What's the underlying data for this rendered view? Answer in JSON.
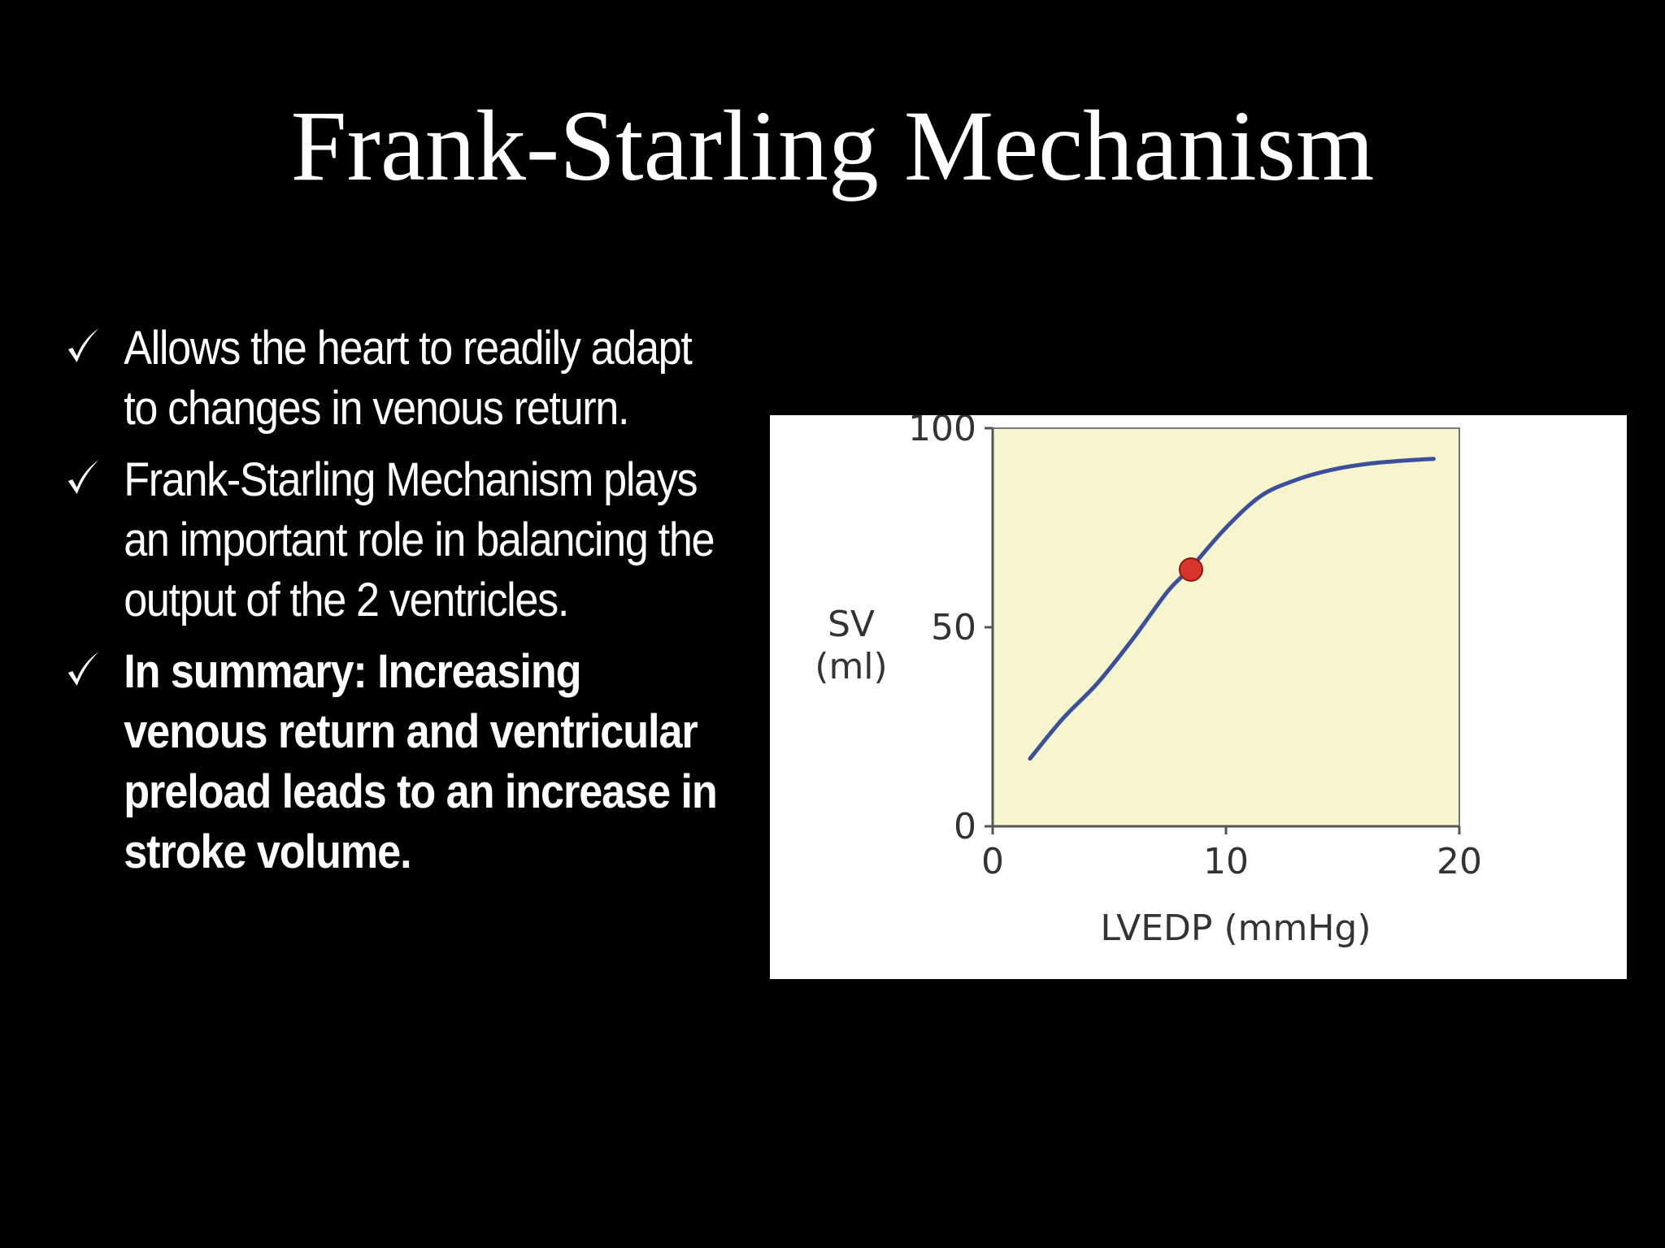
{
  "slide": {
    "title": "Frank-Starling Mechanism",
    "bullets": [
      {
        "text": "Allows the heart to readily adapt to changes in venous return.",
        "bold": false
      },
      {
        "text": "Frank-Starling Mechanism plays an important role in balancing the output of the 2 ventricles.",
        "bold": false
      },
      {
        "text": "In summary: Increasing venous return and ventricular preload leads to an increase in stroke volume.",
        "bold": true
      }
    ],
    "bullet_icon": "check-icon"
  },
  "chart_data": {
    "type": "line",
    "title": "",
    "xlabel": "LVEDP (mmHg)",
    "ylabel_line1": "SV",
    "ylabel_line2": "(ml)",
    "xlim": [
      0,
      20
    ],
    "ylim": [
      0,
      100
    ],
    "x_ticks": [
      0,
      10,
      20
    ],
    "y_ticks": [
      0,
      50,
      100
    ],
    "x_tick_labels": [
      "0",
      "10",
      "20"
    ],
    "y_tick_labels": [
      "0",
      "50",
      "100"
    ],
    "grid": false,
    "plot_background": "#f7f5cd",
    "series": [
      {
        "color": "#3b4f9a",
        "x": [
          1.6,
          3.0,
          4.5,
          6.0,
          7.5,
          8.5,
          10.0,
          11.5,
          13.0,
          14.5,
          16.0,
          17.5,
          18.9
        ],
        "y": [
          17,
          27,
          36,
          47,
          59,
          65,
          75,
          83,
          87,
          89.5,
          91,
          91.8,
          92.3
        ]
      }
    ],
    "highlight_point": {
      "x": 8.5,
      "y": 64.5,
      "color": "#d9342b"
    }
  },
  "colors": {
    "background": "#000000",
    "text": "#ffffff",
    "figure_background": "#ffffff",
    "axis": "#555555"
  }
}
